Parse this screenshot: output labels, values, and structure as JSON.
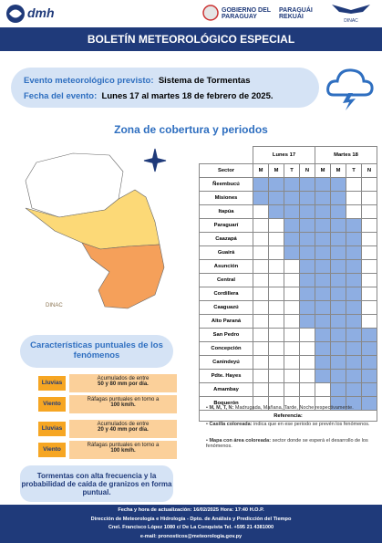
{
  "header": {
    "logo": "dmh",
    "government": "GOBIERNO DEL PARAGUAY",
    "slogan": "PARAGUÁI REKUÁI",
    "agency": "DINAC"
  },
  "title": "BOLETÍN METEOROLÓGICO ESPECIAL",
  "event": {
    "label1": "Evento meteorológico previsto:",
    "value1": "Sistema de Tormentas",
    "label2": "Fecha del evento:",
    "value2": "Lunes 17 al martes 18 de febrero de 2025."
  },
  "section_title": "Zona de cobertura y periodos",
  "map": {
    "watermark": "DINAC"
  },
  "table": {
    "days": [
      "Lunes 17",
      "Martes 18"
    ],
    "sector_header": "Sector",
    "periods": [
      "M",
      "M",
      "T",
      "N",
      "M",
      "M",
      "T",
      "N"
    ],
    "rows": [
      {
        "name": "Ñeembucú",
        "covered": [
          true,
          true,
          true,
          true,
          true,
          true,
          false,
          false
        ]
      },
      {
        "name": "Misiones",
        "covered": [
          true,
          true,
          true,
          true,
          true,
          true,
          false,
          false
        ]
      },
      {
        "name": "Itapúa",
        "covered": [
          false,
          true,
          true,
          true,
          true,
          true,
          false,
          false
        ]
      },
      {
        "name": "Paraguarí",
        "covered": [
          false,
          false,
          true,
          true,
          true,
          true,
          true,
          false
        ]
      },
      {
        "name": "Caazapá",
        "covered": [
          false,
          false,
          true,
          true,
          true,
          true,
          true,
          false
        ]
      },
      {
        "name": "Guairá",
        "covered": [
          false,
          false,
          true,
          true,
          true,
          true,
          true,
          false
        ]
      },
      {
        "name": "Asunción",
        "covered": [
          false,
          false,
          false,
          true,
          true,
          true,
          true,
          false
        ]
      },
      {
        "name": "Central",
        "covered": [
          false,
          false,
          false,
          true,
          true,
          true,
          true,
          false
        ]
      },
      {
        "name": "Cordillera",
        "covered": [
          false,
          false,
          false,
          true,
          true,
          true,
          true,
          false
        ]
      },
      {
        "name": "Caaguazú",
        "covered": [
          false,
          false,
          false,
          true,
          true,
          true,
          true,
          false
        ]
      },
      {
        "name": "Alto Paraná",
        "covered": [
          false,
          false,
          false,
          true,
          true,
          true,
          true,
          false
        ]
      },
      {
        "name": "San Pedro",
        "covered": [
          false,
          false,
          false,
          false,
          true,
          true,
          true,
          true
        ]
      },
      {
        "name": "Concepción",
        "covered": [
          false,
          false,
          false,
          false,
          true,
          true,
          true,
          true
        ]
      },
      {
        "name": "Canindeyú",
        "covered": [
          false,
          false,
          false,
          false,
          true,
          true,
          true,
          true
        ]
      },
      {
        "name": "Pdte. Hayes",
        "covered": [
          false,
          false,
          false,
          false,
          true,
          true,
          true,
          true
        ]
      },
      {
        "name": "Amambay",
        "covered": [
          false,
          false,
          false,
          false,
          false,
          true,
          true,
          true
        ]
      },
      {
        "name": "Boquerón",
        "covered": [
          false,
          false,
          false,
          false,
          false,
          true,
          true,
          true
        ]
      }
    ],
    "reference_title": "Referencia:",
    "reference": [
      {
        "term": "M, M, T, N:",
        "text": "Madrugada, Mañana, Tarde, Noche respectivamente."
      },
      {
        "term": "Casilla coloreada:",
        "text": "indica que en ese periodo se prevén los fenómenos."
      },
      {
        "term": "Mapa con área coloreada:",
        "text": "sector donde se esperá el desarrollo de los fenómenos."
      }
    ]
  },
  "characteristics": {
    "title": "Características puntuales de los fenómenos",
    "items": [
      {
        "label": "Lluvias",
        "line1": "Acumulados de entre",
        "line2": "50 y 80 mm por día."
      },
      {
        "label": "Viento",
        "line1": "Ráfagas puntuales en torno a",
        "line2": "100 km/h."
      },
      {
        "label": "Lluvias",
        "line1": "Acumulados de entre",
        "line2": "20 y 40 mm por día."
      },
      {
        "label": "Viento",
        "line1": "Ráfagas puntuales en torno a",
        "line2": "100 km/h."
      }
    ]
  },
  "note": "Tormentas con alta frecuencia y la probabilidad de caída de granizos en forma puntual.",
  "footer": [
    "Fecha y hora de actualización: 16/02/2025 Hora: 17:40 H.O.P.",
    "Dirección de Meteorología e Hidrología - Dpto. de Análisis y Predicción del Tiempo",
    "Cnel. Francisco López 1080 c/ De La Conquista Tel. +595 21 4381000",
    "e-mail: pronosticos@meteorologia.gov.py"
  ]
}
